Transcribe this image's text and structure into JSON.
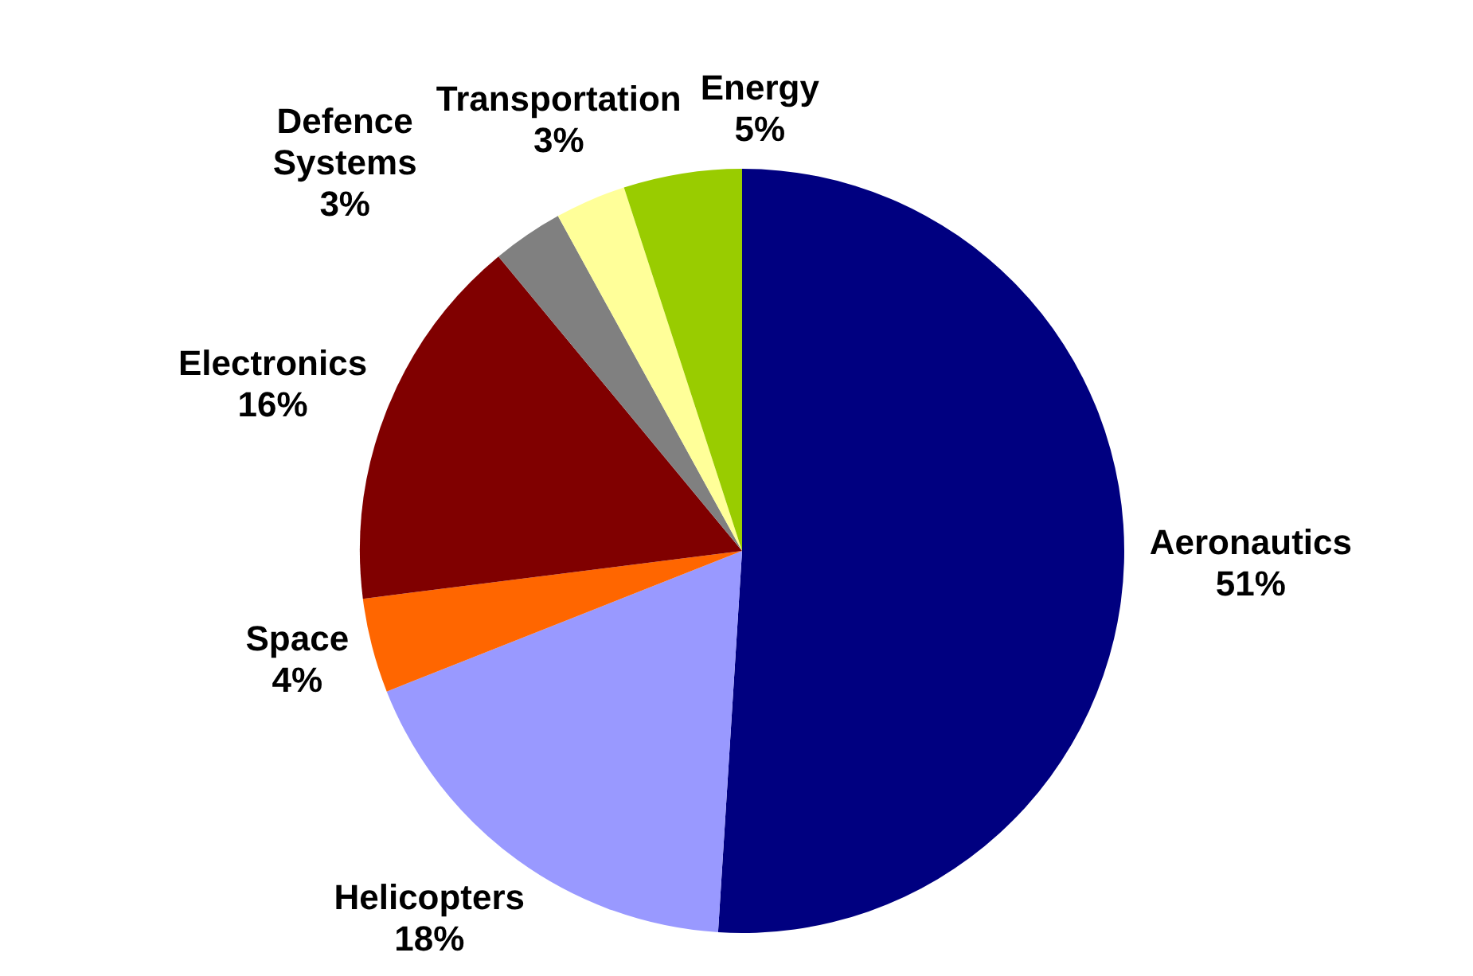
{
  "chart_data": {
    "type": "pie",
    "categories": [
      "Aeronautics",
      "Helicopters",
      "Space",
      "Electronics",
      "Defence Systems",
      "Transportation",
      "Energy"
    ],
    "values": [
      51,
      18,
      4,
      16,
      3,
      3,
      5
    ],
    "colors": [
      "#000080",
      "#9999ff",
      "#ff6600",
      "#800000",
      "#808080",
      "#ffff99",
      "#99cc00"
    ],
    "value_labels": [
      "51%",
      "18%",
      "4%",
      "16%",
      "3%",
      "3%",
      "5%"
    ]
  }
}
